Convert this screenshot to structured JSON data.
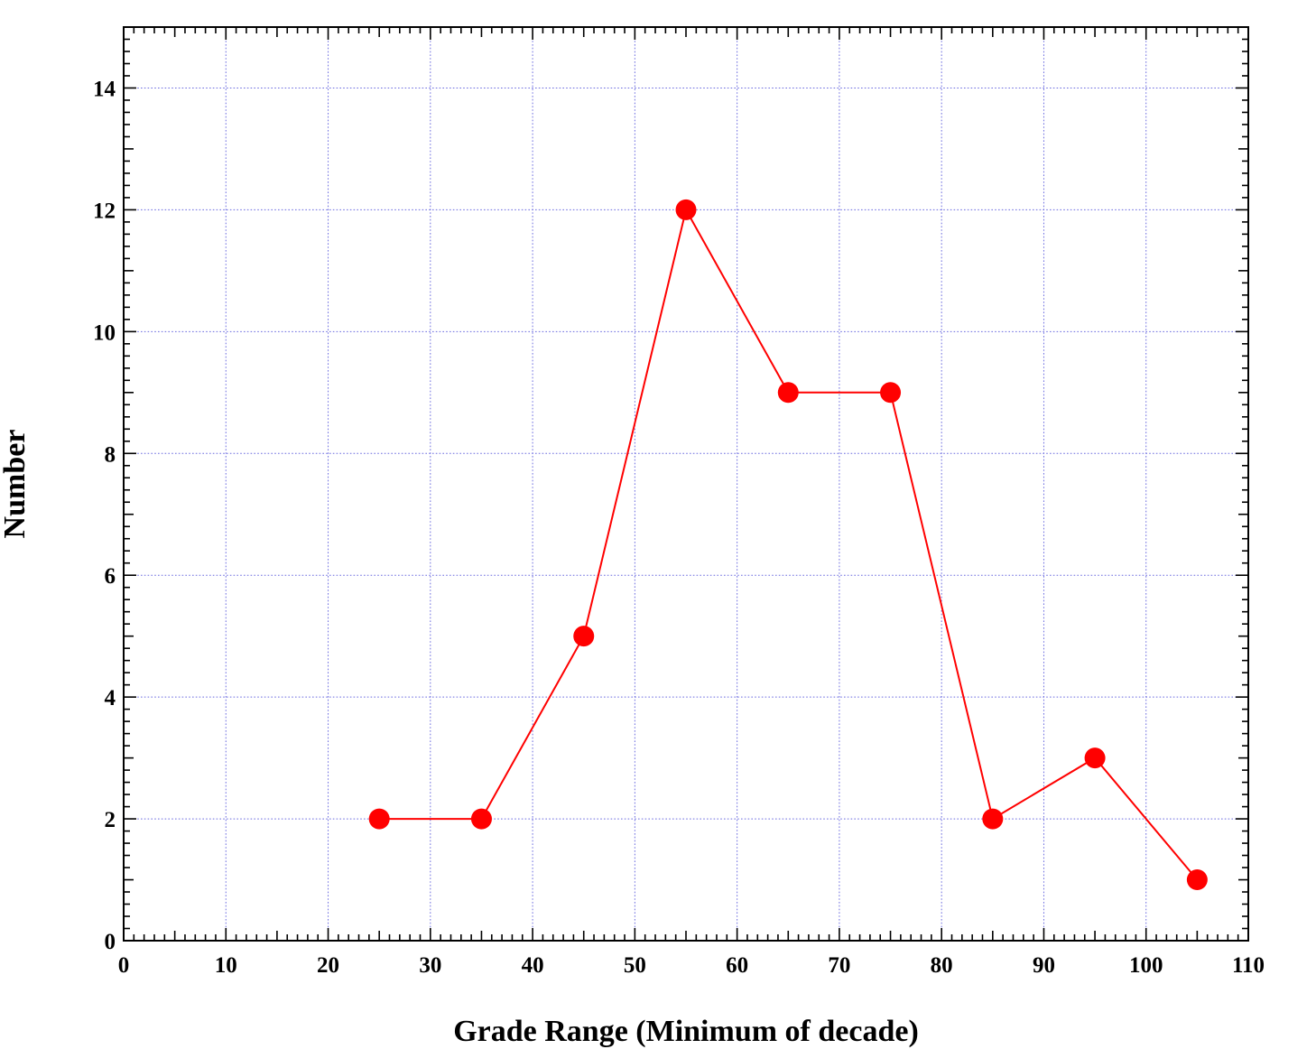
{
  "chart_data": {
    "type": "line",
    "title": "",
    "xlabel": "Grade Range (Minimum of decade)",
    "ylabel": "Number",
    "xlim": [
      0,
      110
    ],
    "ylim": [
      0,
      15
    ],
    "x_ticks": [
      0,
      10,
      20,
      30,
      40,
      50,
      60,
      70,
      80,
      90,
      100,
      110
    ],
    "y_ticks": [
      0,
      2,
      4,
      6,
      8,
      10,
      12,
      14
    ],
    "x_tick_labels": [
      "0",
      "10",
      "20",
      "30",
      "40",
      "50",
      "60",
      "70",
      "80",
      "90",
      "100",
      "110"
    ],
    "y_tick_labels": [
      "0",
      "2",
      "4",
      "6",
      "8",
      "10",
      "12",
      "14"
    ],
    "grid": true,
    "series": [
      {
        "x": [
          25,
          35,
          45,
          55,
          65,
          75,
          85,
          95,
          105
        ],
        "y": [
          2,
          2,
          5,
          12,
          9,
          9,
          2,
          3,
          1
        ],
        "color": "#ff0000",
        "marker": "circle"
      }
    ],
    "grid_color": "#6a6adf",
    "axis_color": "#000000"
  }
}
